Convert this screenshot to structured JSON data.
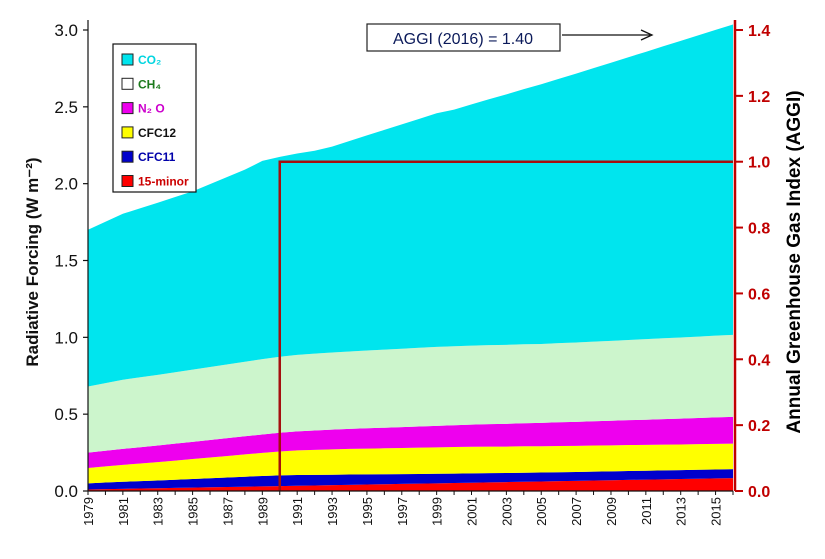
{
  "chart_data": {
    "type": "area",
    "stacked": true,
    "x": [
      1979,
      1980,
      1981,
      1982,
      1983,
      1984,
      1985,
      1986,
      1987,
      1988,
      1989,
      1990,
      1991,
      1992,
      1993,
      1994,
      1995,
      1996,
      1997,
      1998,
      1999,
      2000,
      2001,
      2002,
      2003,
      2004,
      2005,
      2006,
      2007,
      2008,
      2009,
      2010,
      2011,
      2012,
      2013,
      2014,
      2015,
      2016
    ],
    "x_tick_labels": [
      "1979",
      "1981",
      "1983",
      "1985",
      "1987",
      "1989",
      "1991",
      "1993",
      "1995",
      "1997",
      "1999",
      "2001",
      "2003",
      "2005",
      "2007",
      "2009",
      "2011",
      "2013",
      "2015"
    ],
    "ylabel": "Radiative Forcing (W m⁻²)",
    "ylabel_right": "Annual Greenhouse Gas Index (AGGI)",
    "ylim": [
      0,
      3.0
    ],
    "ylim_right": [
      0,
      1.4
    ],
    "y_ticks": [
      "0.0",
      "0.5",
      "1.0",
      "1.5",
      "2.0",
      "2.5",
      "3.0"
    ],
    "y_ticks_right": [
      "0.0",
      "0.2",
      "0.4",
      "0.6",
      "0.8",
      "1.0",
      "1.2",
      "1.4"
    ],
    "series": [
      {
        "name": "15-minor",
        "color": "#ff0000",
        "values": [
          0.01,
          0.012,
          0.014,
          0.016,
          0.018,
          0.02,
          0.022,
          0.024,
          0.026,
          0.028,
          0.03,
          0.032,
          0.034,
          0.036,
          0.038,
          0.04,
          0.042,
          0.044,
          0.046,
          0.048,
          0.05,
          0.052,
          0.054,
          0.056,
          0.058,
          0.06,
          0.062,
          0.064,
          0.066,
          0.068,
          0.07,
          0.072,
          0.074,
          0.076,
          0.078,
          0.08,
          0.082,
          0.084
        ]
      },
      {
        "name": "CFC11",
        "color": "#0000cc",
        "values": [
          0.04,
          0.043,
          0.046,
          0.048,
          0.05,
          0.053,
          0.056,
          0.059,
          0.062,
          0.065,
          0.068,
          0.07,
          0.07,
          0.069,
          0.068,
          0.067,
          0.066,
          0.065,
          0.064,
          0.063,
          0.062,
          0.061,
          0.061,
          0.06,
          0.059,
          0.059,
          0.058,
          0.058,
          0.058,
          0.058,
          0.058,
          0.058,
          0.058,
          0.058,
          0.058,
          0.058,
          0.058,
          0.058
        ]
      },
      {
        "name": "CFC12",
        "color": "#ffff00",
        "values": [
          0.1,
          0.105,
          0.11,
          0.115,
          0.12,
          0.125,
          0.13,
          0.135,
          0.14,
          0.145,
          0.15,
          0.155,
          0.16,
          0.163,
          0.165,
          0.167,
          0.168,
          0.169,
          0.17,
          0.171,
          0.172,
          0.173,
          0.173,
          0.173,
          0.172,
          0.172,
          0.171,
          0.171,
          0.17,
          0.17,
          0.169,
          0.169,
          0.168,
          0.168,
          0.167,
          0.167,
          0.167,
          0.166
        ]
      },
      {
        "name": "N2O",
        "color": "#ee00ee",
        "values": [
          0.1,
          0.102,
          0.104,
          0.106,
          0.108,
          0.11,
          0.112,
          0.114,
          0.116,
          0.118,
          0.12,
          0.122,
          0.124,
          0.126,
          0.128,
          0.13,
          0.132,
          0.134,
          0.136,
          0.138,
          0.14,
          0.142,
          0.144,
          0.146,
          0.148,
          0.15,
          0.152,
          0.154,
          0.156,
          0.158,
          0.16,
          0.162,
          0.164,
          0.166,
          0.168,
          0.17,
          0.172,
          0.174
        ]
      },
      {
        "name": "CH4",
        "color": "#ccf5cc",
        "values": [
          0.43,
          0.44,
          0.45,
          0.455,
          0.46,
          0.465,
          0.47,
          0.475,
          0.48,
          0.485,
          0.49,
          0.495,
          0.498,
          0.5,
          0.502,
          0.504,
          0.506,
          0.508,
          0.51,
          0.512,
          0.514,
          0.514,
          0.514,
          0.514,
          0.514,
          0.514,
          0.514,
          0.515,
          0.516,
          0.518,
          0.52,
          0.522,
          0.524,
          0.526,
          0.528,
          0.53,
          0.532,
          0.534
        ]
      },
      {
        "name": "CO2",
        "color": "#00e5ee",
        "values": [
          1.02,
          1.05,
          1.08,
          1.1,
          1.12,
          1.14,
          1.16,
          1.19,
          1.22,
          1.25,
          1.29,
          1.3,
          1.31,
          1.32,
          1.34,
          1.37,
          1.4,
          1.43,
          1.46,
          1.49,
          1.52,
          1.54,
          1.57,
          1.6,
          1.63,
          1.66,
          1.69,
          1.72,
          1.75,
          1.78,
          1.81,
          1.84,
          1.87,
          1.9,
          1.93,
          1.96,
          1.99,
          2.02
        ]
      }
    ],
    "legend_labels": [
      "CO₂",
      "CH₄",
      "N₂ O",
      "CFC12",
      "CFC11",
      "15-minor"
    ],
    "legend_colors": [
      "#00e5ee",
      "#ffffff",
      "#ee00ee",
      "#ffff00",
      "#0000cc",
      "#ff0000"
    ],
    "legend_text_colors": [
      "#00d5e0",
      "#1c7a1c",
      "#cc00cc",
      "#111111",
      "#0000aa",
      "#cc0000"
    ],
    "legend_placement": "top-left",
    "reference_year": 1990,
    "reference_aggi": 1.0,
    "annotation": "AGGI (2016) = 1.40",
    "grid": false,
    "colors": {
      "right_axis": "#c00000",
      "reference_box": "#a50f0f"
    }
  }
}
